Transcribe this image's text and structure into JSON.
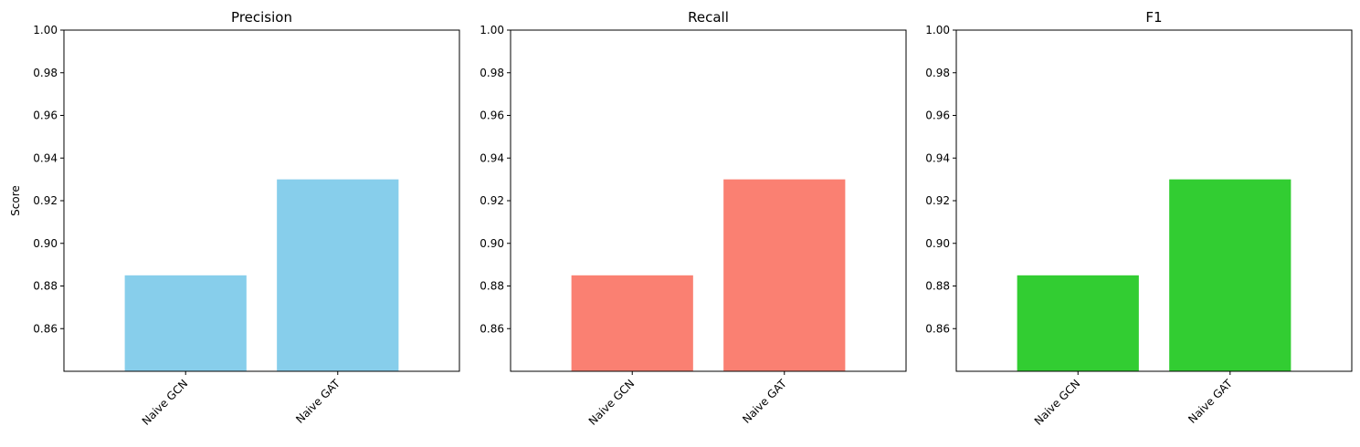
{
  "chart_data": [
    {
      "type": "bar",
      "title": "Precision",
      "ylabel": "Score",
      "xlabel": "",
      "categories": [
        "Naive GCN",
        "Naive GAT"
      ],
      "values": [
        0.885,
        0.93
      ],
      "ylim": [
        0.84,
        1.0
      ],
      "yticks": [
        "0.86",
        "0.88",
        "0.90",
        "0.92",
        "0.94",
        "0.96",
        "0.98",
        "1.00"
      ],
      "color": "#87ceeb",
      "grid": false,
      "legend": "none"
    },
    {
      "type": "bar",
      "title": "Recall",
      "ylabel": "",
      "xlabel": "",
      "categories": [
        "Naive GCN",
        "Naive GAT"
      ],
      "values": [
        0.885,
        0.93
      ],
      "ylim": [
        0.84,
        1.0
      ],
      "yticks": [
        "0.86",
        "0.88",
        "0.90",
        "0.92",
        "0.94",
        "0.96",
        "0.98",
        "1.00"
      ],
      "color": "#fa8072",
      "grid": false,
      "legend": "none"
    },
    {
      "type": "bar",
      "title": "F1",
      "ylabel": "",
      "xlabel": "",
      "categories": [
        "Naive GCN",
        "Naive GAT"
      ],
      "values": [
        0.885,
        0.93
      ],
      "ylim": [
        0.84,
        1.0
      ],
      "yticks": [
        "0.86",
        "0.88",
        "0.90",
        "0.92",
        "0.94",
        "0.96",
        "0.98",
        "1.00"
      ],
      "color": "#32cd32",
      "grid": false,
      "legend": "none"
    }
  ]
}
